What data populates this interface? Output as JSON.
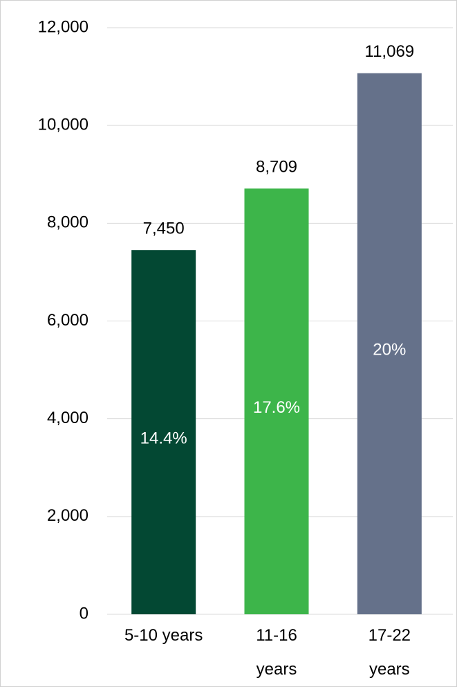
{
  "chart_data": {
    "type": "bar",
    "categories": [
      "5-10 years",
      "11-16 years",
      "17-22 years"
    ],
    "values": [
      7450,
      8709,
      11069
    ],
    "value_labels": [
      "7,450",
      "8,709",
      "11,069"
    ],
    "shares": [
      14.4,
      17.6,
      20
    ],
    "share_labels": [
      "14.4%",
      "17.6%",
      "20%"
    ],
    "colors": [
      "#034833",
      "#3db54a",
      "#65718a"
    ],
    "ylim": [
      0,
      12000
    ],
    "yticks": [
      0,
      {
        "value": 2000,
        "label": "2,000"
      },
      {
        "value": 4000,
        "label": "4,000"
      },
      {
        "value": 6000,
        "label": "6,000"
      },
      {
        "value": 8000,
        "label": "8,000"
      },
      {
        "value": 10000,
        "label": "10,000"
      },
      {
        "value": 12000,
        "label": "12,000"
      }
    ],
    "grid": true
  }
}
